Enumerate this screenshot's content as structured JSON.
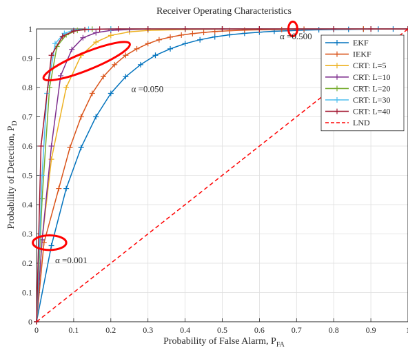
{
  "chart_data": {
    "type": "line",
    "title": "Receiver Operating Characteristics",
    "xlabel_main": "Probability of False Alarm, P",
    "xlabel_sub": "FA",
    "ylabel_main": "Probability of Detection, P",
    "ylabel_sub": "D",
    "xlim": [
      0,
      1
    ],
    "ylim": [
      0,
      1
    ],
    "grid": true,
    "legend_position": "top-right",
    "x_ticks": [
      "0",
      "0.1",
      "0.2",
      "0.3",
      "0.4",
      "0.5",
      "0.6",
      "0.7",
      "0.8",
      "0.9",
      "1"
    ],
    "y_ticks": [
      "0",
      "0.1",
      "0.2",
      "0.3",
      "0.4",
      "0.5",
      "0.6",
      "0.7",
      "0.8",
      "0.9",
      "1"
    ],
    "series": [
      {
        "name": "EKF",
        "color": "#0072BD",
        "style": "solid",
        "marker": "plus",
        "points": [
          [
            0,
            0
          ],
          [
            0.04,
            0.26
          ],
          [
            0.08,
            0.455
          ],
          [
            0.12,
            0.595
          ],
          [
            0.16,
            0.7
          ],
          [
            0.2,
            0.78
          ],
          [
            0.24,
            0.837
          ],
          [
            0.28,
            0.878
          ],
          [
            0.32,
            0.91
          ],
          [
            0.36,
            0.932
          ],
          [
            0.4,
            0.95
          ],
          [
            0.44,
            0.963
          ],
          [
            0.48,
            0.973
          ],
          [
            0.52,
            0.98
          ],
          [
            0.56,
            0.985
          ],
          [
            0.6,
            0.989
          ],
          [
            0.64,
            0.992
          ],
          [
            0.68,
            0.994
          ],
          [
            0.72,
            0.996
          ],
          [
            0.76,
            0.997
          ],
          [
            0.8,
            0.998
          ],
          [
            0.84,
            0.9985
          ],
          [
            0.88,
            0.999
          ],
          [
            0.92,
            0.9993
          ],
          [
            0.96,
            0.9996
          ],
          [
            1.0,
            1.0
          ]
        ]
      },
      {
        "name": "IEKF",
        "color": "#D95319",
        "style": "solid",
        "marker": "plus",
        "points": [
          [
            0,
            0
          ],
          [
            0.02,
            0.27
          ],
          [
            0.06,
            0.455
          ],
          [
            0.09,
            0.595
          ],
          [
            0.12,
            0.7
          ],
          [
            0.15,
            0.78
          ],
          [
            0.18,
            0.837
          ],
          [
            0.21,
            0.878
          ],
          [
            0.24,
            0.91
          ],
          [
            0.27,
            0.932
          ],
          [
            0.3,
            0.95
          ],
          [
            0.33,
            0.963
          ],
          [
            0.36,
            0.972
          ],
          [
            0.39,
            0.979
          ],
          [
            0.42,
            0.984
          ],
          [
            0.45,
            0.988
          ],
          [
            0.48,
            0.991
          ],
          [
            0.52,
            0.994
          ],
          [
            0.56,
            0.996
          ],
          [
            0.6,
            0.997
          ],
          [
            0.66,
            0.998
          ],
          [
            0.72,
            0.999
          ],
          [
            0.8,
            0.9995
          ],
          [
            0.88,
            0.9998
          ],
          [
            1.0,
            1.0
          ]
        ]
      },
      {
        "name": "CRT: L=5",
        "color": "#EDB120",
        "style": "solid",
        "marker": "plus",
        "points": [
          [
            0,
            0
          ],
          [
            0.015,
            0.28
          ],
          [
            0.04,
            0.555
          ],
          [
            0.08,
            0.8
          ],
          [
            0.12,
            0.91
          ],
          [
            0.16,
            0.955
          ],
          [
            0.2,
            0.978
          ],
          [
            0.25,
            0.99
          ],
          [
            0.3,
            0.995
          ],
          [
            0.4,
            0.998
          ],
          [
            0.5,
            0.9993
          ],
          [
            0.6,
            0.9997
          ],
          [
            0.7,
            0.9999
          ],
          [
            0.8,
            1.0
          ],
          [
            0.9,
            1.0
          ],
          [
            1.0,
            1.0
          ]
        ]
      },
      {
        "name": "CRT: L=10",
        "color": "#7E2F8E",
        "style": "solid",
        "marker": "plus",
        "points": [
          [
            0,
            0
          ],
          [
            0.015,
            0.28
          ],
          [
            0.04,
            0.6
          ],
          [
            0.065,
            0.84
          ],
          [
            0.095,
            0.93
          ],
          [
            0.125,
            0.97
          ],
          [
            0.16,
            0.987
          ],
          [
            0.2,
            0.995
          ],
          [
            0.25,
            0.998
          ],
          [
            0.3,
            0.9993
          ],
          [
            0.4,
            0.9998
          ],
          [
            0.5,
            1.0
          ],
          [
            0.6,
            1.0
          ],
          [
            0.7,
            1.0
          ],
          [
            0.8,
            1.0
          ],
          [
            0.9,
            1.0
          ],
          [
            1.0,
            1.0
          ]
        ]
      },
      {
        "name": "CRT: L=20",
        "color": "#77AC30",
        "style": "solid",
        "marker": "plus",
        "points": [
          [
            0,
            0
          ],
          [
            0.015,
            0.42
          ],
          [
            0.035,
            0.8
          ],
          [
            0.055,
            0.94
          ],
          [
            0.08,
            0.98
          ],
          [
            0.11,
            0.995
          ],
          [
            0.15,
            0.999
          ],
          [
            0.2,
            0.9997
          ],
          [
            0.3,
            1.0
          ],
          [
            0.4,
            1.0
          ],
          [
            0.5,
            1.0
          ],
          [
            0.6,
            1.0
          ],
          [
            0.7,
            1.0
          ],
          [
            0.8,
            1.0
          ],
          [
            0.9,
            1.0
          ],
          [
            1.0,
            1.0
          ]
        ]
      },
      {
        "name": "CRT: L=30",
        "color": "#4DBEEE",
        "style": "solid",
        "marker": "plus",
        "points": [
          [
            0,
            0
          ],
          [
            0.015,
            0.5
          ],
          [
            0.028,
            0.78
          ],
          [
            0.05,
            0.95
          ],
          [
            0.075,
            0.985
          ],
          [
            0.1,
            0.996
          ],
          [
            0.14,
            0.999
          ],
          [
            0.2,
            1.0
          ],
          [
            0.3,
            1.0
          ],
          [
            0.4,
            1.0
          ],
          [
            0.5,
            1.0
          ],
          [
            0.6,
            1.0
          ],
          [
            0.7,
            1.0
          ],
          [
            0.8,
            1.0
          ],
          [
            0.9,
            1.0
          ],
          [
            1.0,
            1.0
          ]
        ]
      },
      {
        "name": "CRT: L=40",
        "color": "#A2142F",
        "style": "solid",
        "marker": "plus",
        "points": [
          [
            0,
            0
          ],
          [
            0.012,
            0.6
          ],
          [
            0.04,
            0.91
          ],
          [
            0.07,
            0.975
          ],
          [
            0.1,
            0.993
          ],
          [
            0.13,
            0.998
          ],
          [
            0.17,
            0.9995
          ],
          [
            0.22,
            1.0
          ],
          [
            0.3,
            1.0
          ],
          [
            0.4,
            1.0
          ],
          [
            0.5,
            1.0
          ],
          [
            0.6,
            1.0
          ],
          [
            0.7,
            1.0
          ],
          [
            0.8,
            1.0
          ],
          [
            0.9,
            1.0
          ],
          [
            1.0,
            1.0
          ]
        ]
      },
      {
        "name": "LND",
        "color": "#FF0000",
        "style": "dashed",
        "marker": "none",
        "points": [
          [
            0,
            0
          ],
          [
            1,
            1
          ]
        ]
      }
    ],
    "annotations": [
      {
        "text": "α =0.001",
        "x": 0.05,
        "y": 0.2,
        "ellipse": {
          "cx": 0.035,
          "cy": 0.27,
          "rx": 0.045,
          "ry": 0.025,
          "angle": 0
        }
      },
      {
        "text": "α =0.050",
        "x": 0.255,
        "y": 0.785,
        "ellipse": {
          "cx": 0.135,
          "cy": 0.89,
          "rx": 0.125,
          "ry": 0.03,
          "angle": -22
        }
      },
      {
        "text": "α =0.500",
        "x": 0.655,
        "y": 0.965,
        "ellipse": {
          "cx": 0.69,
          "cy": 1.0,
          "rx": 0.012,
          "ry": 0.025,
          "angle": 0
        }
      }
    ]
  }
}
